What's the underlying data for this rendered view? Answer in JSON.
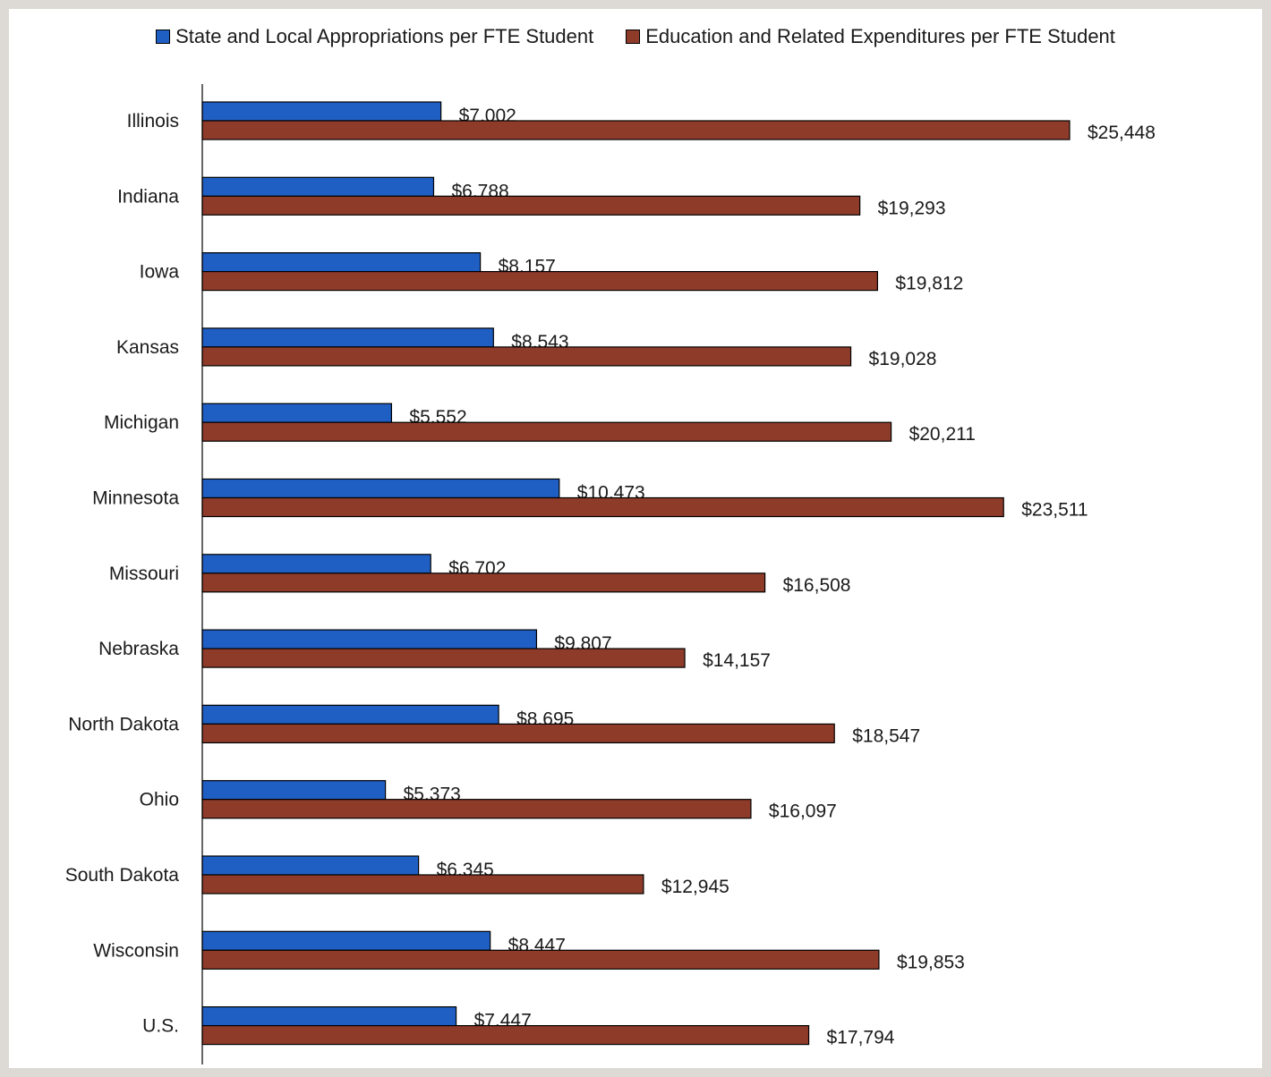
{
  "chart_data": {
    "type": "bar",
    "orientation": "horizontal",
    "categories": [
      "Illinois",
      "Indiana",
      "Iowa",
      "Kansas",
      "Michigan",
      "Minnesota",
      "Missouri",
      "Nebraska",
      "North Dakota",
      "Ohio",
      "South Dakota",
      "Wisconsin",
      "U.S."
    ],
    "series": [
      {
        "name": "State and Local Appropriations per FTE Student",
        "color": "#1f5fc4",
        "values": [
          7002,
          6788,
          8157,
          8543,
          5552,
          10473,
          6702,
          9807,
          8695,
          5373,
          6345,
          8447,
          7447
        ],
        "labels": [
          "$7,002",
          "$6,788",
          "$8,157",
          "$8,543",
          "$5,552",
          "$10,473",
          "$6,702",
          "$9,807",
          "$8,695",
          "$5,373",
          "$6,345",
          "$8,447",
          "$7,447"
        ]
      },
      {
        "name": "Education and Related Expenditures per FTE Student",
        "color": "#8e3b2a",
        "values": [
          25448,
          19293,
          19812,
          19028,
          20211,
          23511,
          16508,
          14157,
          18547,
          16097,
          12945,
          19853,
          17794
        ],
        "labels": [
          "$25,448",
          "$19,293",
          "$19,812",
          "$19,028",
          "$20,211",
          "$23,511",
          "$16,508",
          "$14,157",
          "$18,547",
          "$16,097",
          "$12,945",
          "$19,853",
          "$17,794"
        ]
      }
    ],
    "legend_position": "top",
    "grid": false,
    "xaxis_visible": false
  }
}
